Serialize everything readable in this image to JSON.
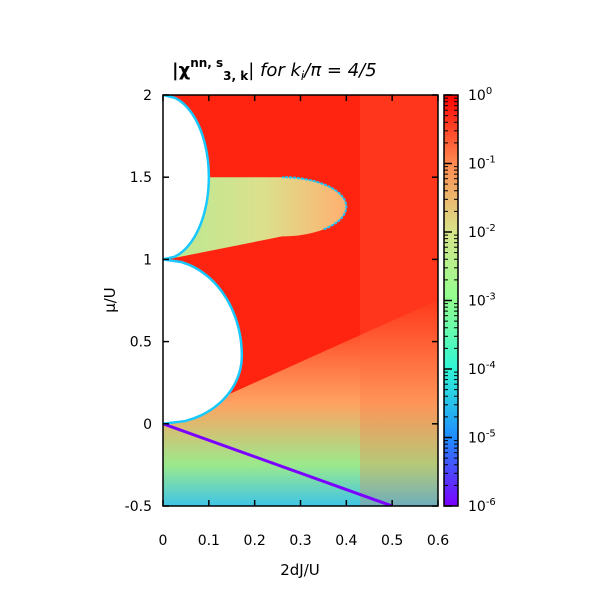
{
  "chart_data": {
    "type": "heatmap",
    "title_main": "|χ",
    "title_sup": "nn, s",
    "title_sub": "3, k",
    "title_tail": "| for k",
    "title_sub2": "i",
    "title_end": "/π = 4/5",
    "xlabel": "2dJ/U",
    "ylabel": "μ/U",
    "xlim": [
      0,
      0.6
    ],
    "ylim": [
      -0.5,
      2
    ],
    "x_ticks": [
      0,
      0.1,
      0.2,
      0.3,
      0.4,
      0.5,
      0.6
    ],
    "x_tick_labels": [
      "0",
      "0.1",
      "0.2",
      "0.3",
      "0.4",
      "0.5",
      "0.6"
    ],
    "y_ticks": [
      -0.5,
      0,
      0.5,
      1,
      1.5,
      2
    ],
    "y_tick_labels": [
      "-0.5",
      "0",
      "0.5",
      "1",
      "1.5",
      "2"
    ],
    "colorbar": {
      "scale": "log",
      "range": [
        1e-06,
        1
      ],
      "tick_exponents": [
        0,
        -1,
        -2,
        -3,
        -4,
        -5,
        -6
      ],
      "tick_base": "10",
      "tick_exp_labels": [
        "0",
        "-1",
        "-2",
        "-3",
        "-4",
        "-5",
        "-6"
      ]
    },
    "mott_lobes": [
      {
        "n": 0,
        "mu_range": [
          -0.5,
          0
        ],
        "tip_J": 0.0
      },
      {
        "n": 1,
        "mu_range": [
          0,
          1
        ],
        "tip_J": 0.172,
        "tip_mu": 0.414
      },
      {
        "n": 2,
        "mu_range": [
          1,
          2
        ],
        "tip_J": 0.1,
        "tip_mu": 1.5
      }
    ],
    "colors": {
      "high": "#ff0000",
      "mid": "#c8e68c",
      "low": "#8000ff"
    }
  }
}
